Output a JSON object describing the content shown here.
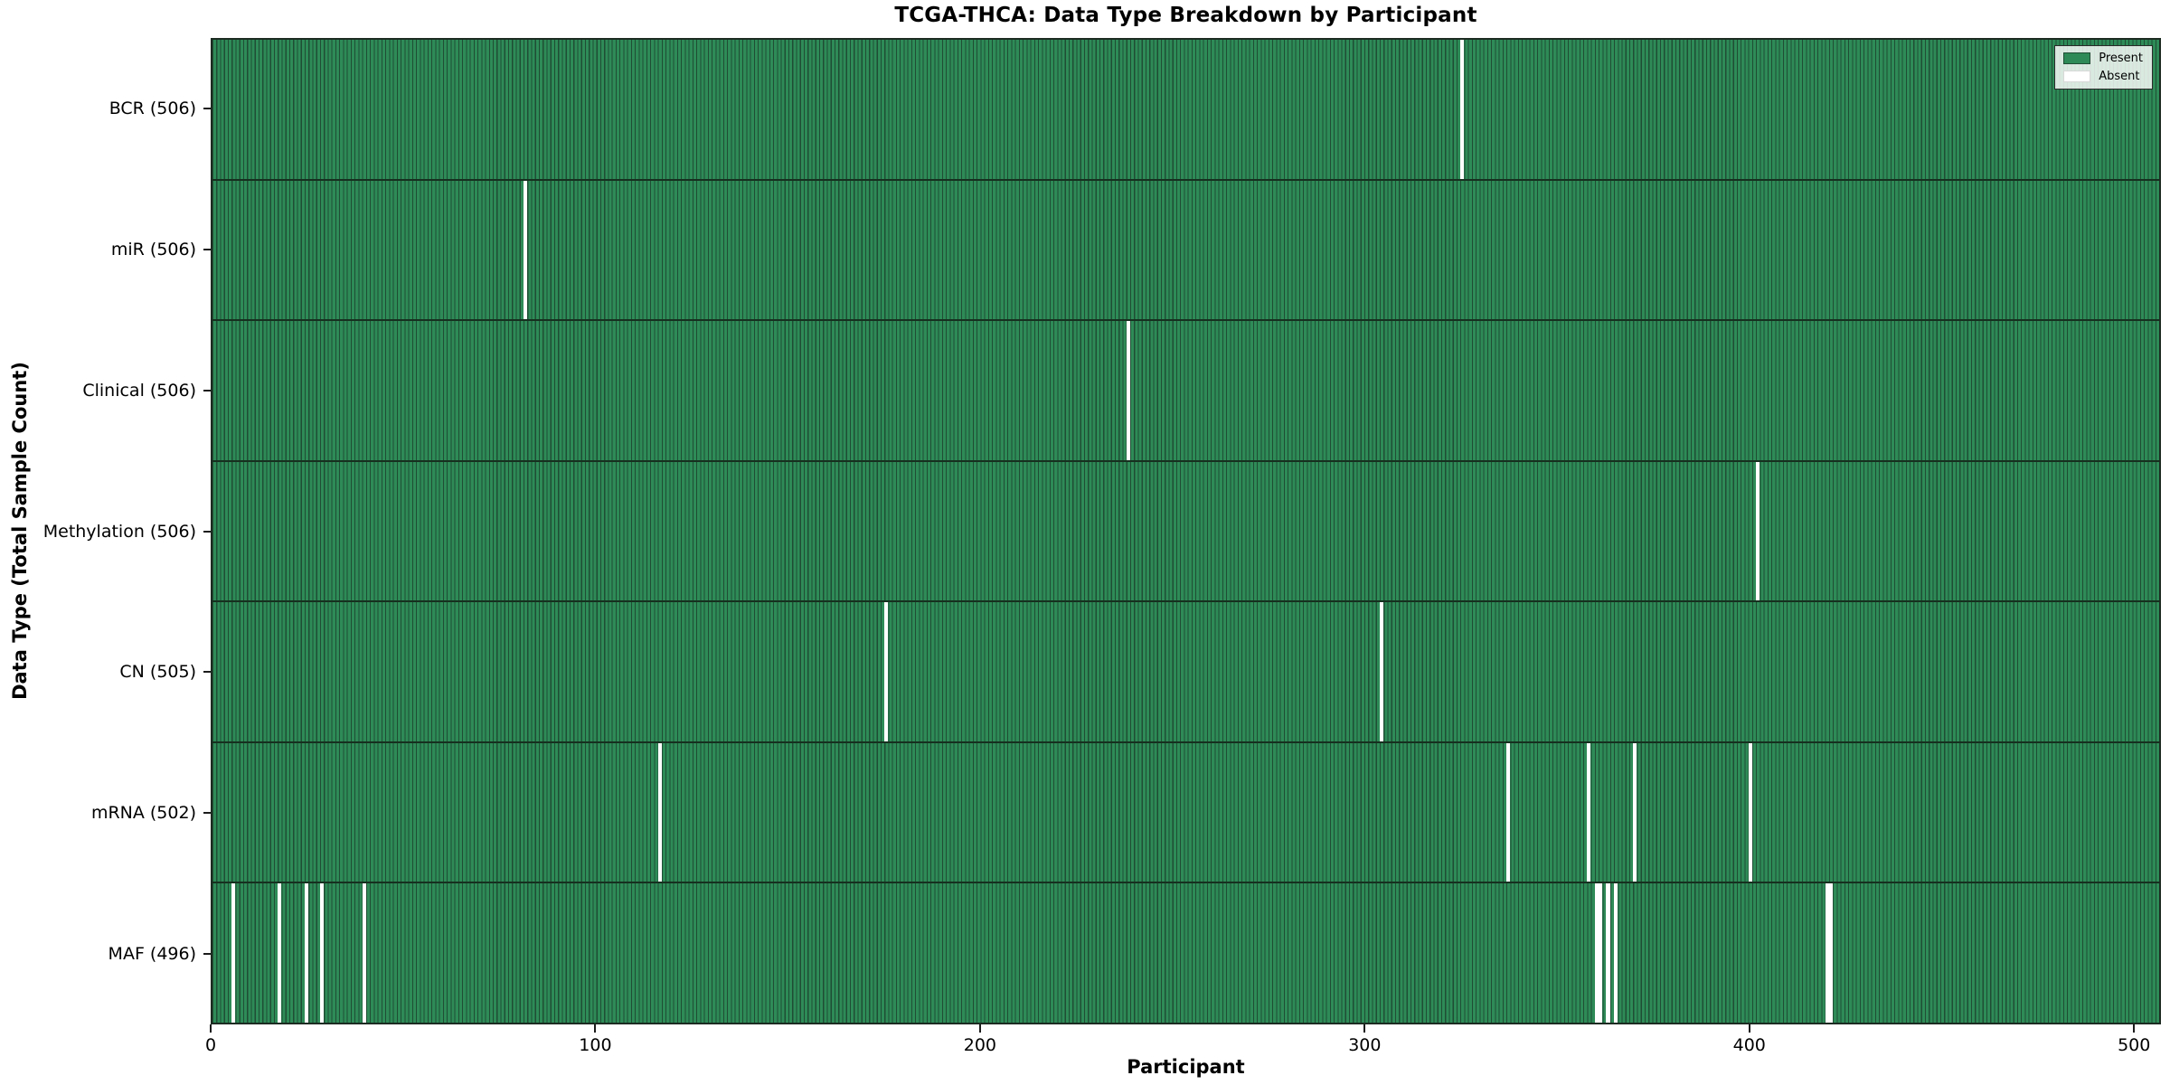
{
  "chart_data": {
    "type": "heatmap",
    "title": "TCGA-THCA: Data Type Breakdown by Participant",
    "xlabel": "Participant",
    "ylabel": "Data Type (Total Sample Count)",
    "x_ticks": [
      0,
      100,
      200,
      300,
      400,
      500
    ],
    "x_range": [
      0,
      507
    ],
    "n_participants": 507,
    "grid": false,
    "legend": {
      "position": "upper right",
      "entries": [
        {
          "label": "Present",
          "color": "#2e8b57"
        },
        {
          "label": "Absent",
          "color": "#ffffff"
        }
      ]
    },
    "colors": {
      "present_fill": "#2e8b57",
      "bar_edge": "#1f4d34",
      "absent_fill": "#ffffff",
      "spine": "#1c2b22"
    },
    "rows": [
      {
        "label": "BCR (506)",
        "data_type": "BCR",
        "present_count": 506,
        "absent_participants": [
          325
        ]
      },
      {
        "label": "miR (506)",
        "data_type": "miR",
        "present_count": 506,
        "absent_participants": [
          81
        ]
      },
      {
        "label": "Clinical (506)",
        "data_type": "Clinical",
        "present_count": 506,
        "absent_participants": [
          238
        ]
      },
      {
        "label": "Methylation (506)",
        "data_type": "Methylation",
        "present_count": 506,
        "absent_participants": [
          402
        ]
      },
      {
        "label": "CN (505)",
        "data_type": "CN",
        "present_count": 505,
        "absent_participants": [
          175,
          304
        ]
      },
      {
        "label": "mRNA (502)",
        "data_type": "mRNA",
        "present_count": 502,
        "absent_participants": [
          116,
          337,
          358,
          370,
          400
        ]
      },
      {
        "label": "MAF (496)",
        "data_type": "MAF",
        "present_count": 496,
        "absent_participants": [
          5,
          17,
          24,
          28,
          39,
          360,
          361,
          363,
          365,
          420,
          421
        ]
      }
    ]
  }
}
